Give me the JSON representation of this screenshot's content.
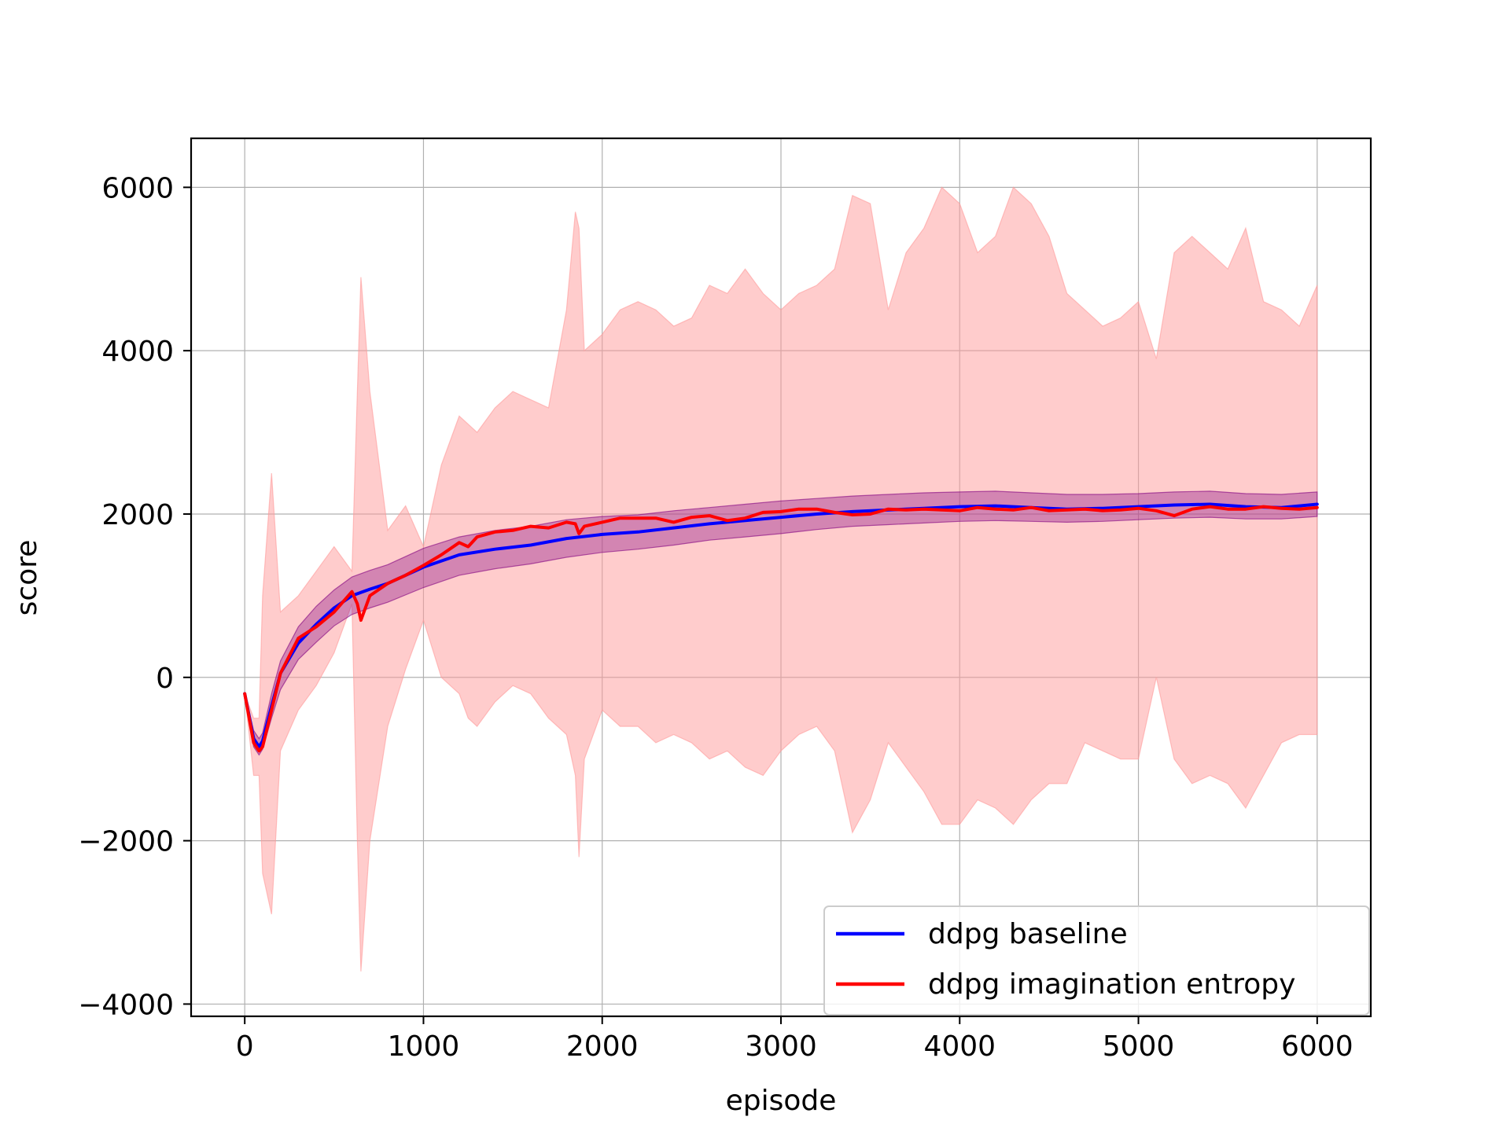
{
  "chart_data": {
    "type": "line",
    "title": "",
    "xlabel": "episode",
    "ylabel": "score",
    "xlim": [
      -300,
      6300
    ],
    "ylim": [
      -4150,
      6600
    ],
    "x_ticks": [
      0,
      1000,
      2000,
      3000,
      4000,
      5000,
      6000
    ],
    "x_tick_labels": [
      "0",
      "1000",
      "2000",
      "3000",
      "4000",
      "5000",
      "6000"
    ],
    "y_ticks": [
      -4000,
      -2000,
      0,
      2000,
      4000,
      6000
    ],
    "y_tick_labels": [
      "−4000",
      "−2000",
      "0",
      "2000",
      "4000",
      "6000"
    ],
    "grid": true,
    "legend_position": "lower-right",
    "series": [
      {
        "name": "ddpg baseline",
        "color": "#0000ff",
        "band_color": "#800080",
        "x": [
          0,
          50,
          80,
          100,
          150,
          200,
          300,
          400,
          500,
          600,
          700,
          800,
          1000,
          1200,
          1400,
          1600,
          1800,
          2000,
          2200,
          2400,
          2600,
          2800,
          3000,
          3200,
          3400,
          3600,
          3800,
          4000,
          4200,
          4400,
          4600,
          4800,
          5000,
          5200,
          5400,
          5600,
          5800,
          6000
        ],
        "values": [
          -200,
          -750,
          -850,
          -780,
          -350,
          50,
          420,
          650,
          850,
          1000,
          1080,
          1150,
          1350,
          1500,
          1570,
          1620,
          1700,
          1750,
          1780,
          1830,
          1880,
          1920,
          1960,
          2000,
          2030,
          2050,
          2070,
          2090,
          2100,
          2080,
          2060,
          2070,
          2090,
          2110,
          2120,
          2090,
          2080,
          2120
        ],
        "band_lower": [
          -200,
          -850,
          -950,
          -880,
          -500,
          -150,
          220,
          430,
          630,
          770,
          850,
          920,
          1100,
          1250,
          1330,
          1390,
          1470,
          1530,
          1570,
          1620,
          1680,
          1720,
          1760,
          1810,
          1850,
          1870,
          1890,
          1910,
          1920,
          1910,
          1900,
          1910,
          1930,
          1950,
          1960,
          1940,
          1940,
          1970
        ],
        "band_upper": [
          -200,
          -650,
          -750,
          -680,
          -200,
          200,
          620,
          870,
          1070,
          1230,
          1310,
          1380,
          1580,
          1720,
          1800,
          1850,
          1930,
          1970,
          1990,
          2040,
          2080,
          2120,
          2160,
          2190,
          2220,
          2240,
          2260,
          2270,
          2280,
          2260,
          2240,
          2240,
          2250,
          2270,
          2280,
          2250,
          2240,
          2270
        ]
      },
      {
        "name": "ddpg imagination entropy",
        "color": "#ff0000",
        "band_color": "#ff9999",
        "x": [
          0,
          50,
          80,
          100,
          150,
          200,
          300,
          400,
          500,
          600,
          630,
          650,
          700,
          800,
          900,
          1000,
          1100,
          1200,
          1250,
          1300,
          1400,
          1500,
          1600,
          1700,
          1800,
          1850,
          1870,
          1900,
          2000,
          2100,
          2200,
          2300,
          2400,
          2500,
          2600,
          2700,
          2800,
          2900,
          3000,
          3100,
          3200,
          3300,
          3400,
          3500,
          3600,
          3700,
          3800,
          3900,
          4000,
          4100,
          4200,
          4300,
          4400,
          4500,
          4600,
          4700,
          4800,
          4900,
          5000,
          5100,
          5200,
          5300,
          5400,
          5500,
          5600,
          5700,
          5800,
          5900,
          6000
        ],
        "values": [
          -200,
          -800,
          -900,
          -850,
          -400,
          50,
          480,
          620,
          800,
          1050,
          900,
          700,
          1000,
          1150,
          1250,
          1370,
          1500,
          1650,
          1600,
          1720,
          1780,
          1800,
          1850,
          1830,
          1900,
          1880,
          1760,
          1850,
          1900,
          1950,
          1950,
          1950,
          1900,
          1960,
          1980,
          1920,
          1950,
          2020,
          2030,
          2060,
          2060,
          2020,
          1990,
          2000,
          2060,
          2050,
          2060,
          2050,
          2040,
          2080,
          2060,
          2050,
          2080,
          2040,
          2050,
          2060,
          2040,
          2050,
          2070,
          2040,
          1980,
          2060,
          2090,
          2060,
          2060,
          2090,
          2070,
          2060,
          2080
        ],
        "band_lower": [
          -200,
          -1200,
          -1200,
          -2400,
          -2900,
          -900,
          -400,
          -100,
          300,
          900,
          -2000,
          -3600,
          -2000,
          -600,
          100,
          700,
          0,
          -200,
          -500,
          -600,
          -300,
          -100,
          -200,
          -500,
          -700,
          -1200,
          -2200,
          -1000,
          -400,
          -600,
          -600,
          -800,
          -700,
          -800,
          -1000,
          -900,
          -1100,
          -1200,
          -900,
          -700,
          -600,
          -900,
          -1900,
          -1500,
          -800,
          -1100,
          -1400,
          -1800,
          -1800,
          -1500,
          -1600,
          -1800,
          -1500,
          -1300,
          -1300,
          -800,
          -900,
          -1000,
          -1000,
          0,
          -1000,
          -1300,
          -1200,
          -1300,
          -1600,
          -1200,
          -800,
          -700,
          -700
        ],
        "band_upper": [
          -200,
          -500,
          -500,
          1000,
          2500,
          800,
          1000,
          1300,
          1600,
          1300,
          3500,
          4900,
          3500,
          1800,
          2100,
          1600,
          2600,
          3200,
          3100,
          3000,
          3300,
          3500,
          3400,
          3300,
          4500,
          5700,
          5500,
          4000,
          4200,
          4500,
          4600,
          4500,
          4300,
          4400,
          4800,
          4700,
          5000,
          4700,
          4500,
          4700,
          4800,
          5000,
          5900,
          5800,
          4500,
          5200,
          5500,
          6000,
          5800,
          5200,
          5400,
          6000,
          5800,
          5400,
          4700,
          4500,
          4300,
          4400,
          4600,
          3900,
          5200,
          5400,
          5200,
          5000,
          5500,
          4600,
          4500,
          4300,
          4800
        ]
      }
    ]
  }
}
